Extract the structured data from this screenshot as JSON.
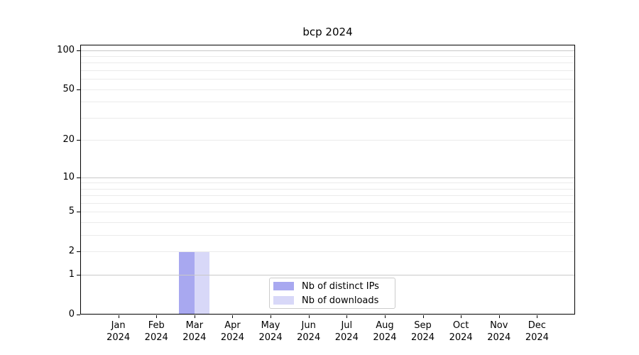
{
  "chart_data": {
    "type": "bar",
    "title": "bcp 2024",
    "year_label": "2024",
    "categories": [
      "Jan",
      "Feb",
      "Mar",
      "Apr",
      "May",
      "Jun",
      "Jul",
      "Aug",
      "Sep",
      "Oct",
      "Nov",
      "Dec"
    ],
    "series": [
      {
        "name": "Nb of distinct IPs",
        "color": "#a8a8f0",
        "values": [
          0,
          0,
          2,
          0,
          0,
          0,
          0,
          0,
          0,
          0,
          0,
          0
        ]
      },
      {
        "name": "Nb of downloads",
        "color": "#d8d8f8",
        "values": [
          0,
          0,
          2,
          0,
          0,
          0,
          0,
          0,
          0,
          0,
          0,
          0
        ]
      }
    ],
    "yscale": "log1p",
    "ylim": [
      0,
      110
    ],
    "yticks": [
      0,
      1,
      2,
      5,
      10,
      20,
      50,
      100
    ],
    "major_gridlines": [
      1,
      10,
      100
    ],
    "minor_gridlines": [
      2,
      3,
      4,
      5,
      6,
      7,
      8,
      9,
      20,
      30,
      40,
      50,
      60,
      70,
      80,
      90
    ],
    "grid_on": true,
    "legend_position": "lower center",
    "colors": {
      "major_grid": "#c8c8c8",
      "minor_grid": "#ebebeb",
      "axis": "#000000",
      "text": "#000000",
      "legend_border": "#cccccc"
    }
  }
}
